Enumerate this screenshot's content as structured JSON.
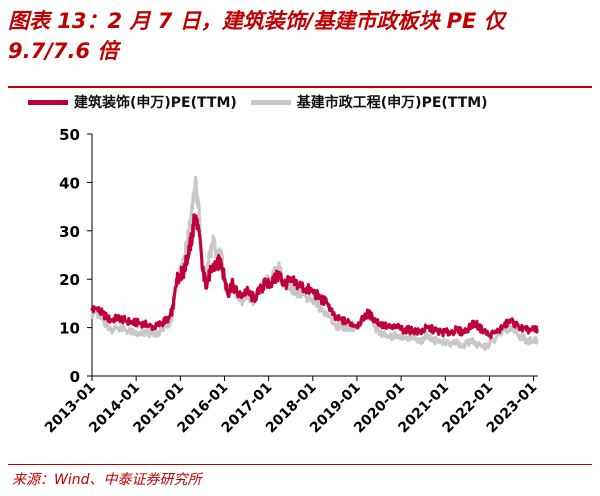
{
  "header": {
    "title": "图表 13：2 月 7 日，建筑装饰/基建市政板块 PE 仅 9.7/7.6 倍"
  },
  "footer": {
    "source": "来源：Wind、中泰证券研究所"
  },
  "chart_data": {
    "type": "line",
    "title": "",
    "xlabel": "",
    "ylabel": "",
    "ylim": [
      0,
      50
    ],
    "yticks": [
      0,
      10,
      20,
      30,
      40,
      50
    ],
    "xticks": [
      "2013-01",
      "2014-01",
      "2015-01",
      "2016-01",
      "2017-01",
      "2018-01",
      "2019-01",
      "2020-01",
      "2021-01",
      "2022-01",
      "2023-01"
    ],
    "grid": false,
    "legend_position": "top",
    "series": [
      {
        "name": "建筑装饰(申万)PE(TTM)",
        "color": "#c0003c",
        "points": [
          [
            "2013-01",
            13.5
          ],
          [
            "2013-02",
            14.0
          ],
          [
            "2013-04",
            12.8
          ],
          [
            "2013-06",
            11.5
          ],
          [
            "2013-08",
            12.0
          ],
          [
            "2013-10",
            11.5
          ],
          [
            "2013-12",
            11.0
          ],
          [
            "2014-02",
            11.0
          ],
          [
            "2014-04",
            10.5
          ],
          [
            "2014-06",
            10.0
          ],
          [
            "2014-08",
            11.0
          ],
          [
            "2014-10",
            12.0
          ],
          [
            "2014-11",
            14.0
          ],
          [
            "2014-12",
            20.0
          ],
          [
            "2015-01",
            21.0
          ],
          [
            "2015-02",
            21.5
          ],
          [
            "2015-03",
            25.0
          ],
          [
            "2015-04",
            28.0
          ],
          [
            "2015-05",
            33.0
          ],
          [
            "2015-06",
            30.0
          ],
          [
            "2015-07",
            22.0
          ],
          [
            "2015-08",
            19.0
          ],
          [
            "2015-09",
            21.0
          ],
          [
            "2015-10",
            22.5
          ],
          [
            "2015-11",
            23.0
          ],
          [
            "2015-12",
            24.0
          ],
          [
            "2016-01",
            20.0
          ],
          [
            "2016-02",
            17.0
          ],
          [
            "2016-03",
            19.0
          ],
          [
            "2016-05",
            16.5
          ],
          [
            "2016-07",
            17.5
          ],
          [
            "2016-09",
            16.0
          ],
          [
            "2016-11",
            18.0
          ],
          [
            "2016-12",
            19.0
          ],
          [
            "2017-02",
            19.5
          ],
          [
            "2017-04",
            21.0
          ],
          [
            "2017-05",
            19.0
          ],
          [
            "2017-07",
            19.5
          ],
          [
            "2017-09",
            19.0
          ],
          [
            "2017-11",
            18.0
          ],
          [
            "2018-01",
            17.5
          ],
          [
            "2018-03",
            16.0
          ],
          [
            "2018-05",
            15.0
          ],
          [
            "2018-07",
            12.0
          ],
          [
            "2018-09",
            11.5
          ],
          [
            "2018-11",
            11.0
          ],
          [
            "2019-01",
            10.5
          ],
          [
            "2019-03",
            12.0
          ],
          [
            "2019-04",
            13.0
          ],
          [
            "2019-06",
            11.5
          ],
          [
            "2019-08",
            10.5
          ],
          [
            "2019-10",
            10.0
          ],
          [
            "2019-12",
            10.0
          ],
          [
            "2020-02",
            9.5
          ],
          [
            "2020-04",
            9.5
          ],
          [
            "2020-06",
            9.0
          ],
          [
            "2020-08",
            10.0
          ],
          [
            "2020-10",
            9.5
          ],
          [
            "2020-12",
            9.0
          ],
          [
            "2021-02",
            9.0
          ],
          [
            "2021-04",
            9.5
          ],
          [
            "2021-06",
            9.0
          ],
          [
            "2021-08",
            10.5
          ],
          [
            "2021-09",
            11.0
          ],
          [
            "2021-11",
            9.5
          ],
          [
            "2022-01",
            8.5
          ],
          [
            "2022-03",
            9.0
          ],
          [
            "2022-05",
            10.5
          ],
          [
            "2022-07",
            11.5
          ],
          [
            "2022-09",
            10.0
          ],
          [
            "2022-11",
            9.5
          ],
          [
            "2023-01",
            9.5
          ],
          [
            "2023-02",
            9.7
          ]
        ]
      },
      {
        "name": "基建市政工程(申万)PE(TTM)",
        "color": "#c8c8c8",
        "points": [
          [
            "2013-01",
            12.8
          ],
          [
            "2013-02",
            13.0
          ],
          [
            "2013-04",
            11.5
          ],
          [
            "2013-06",
            9.5
          ],
          [
            "2013-08",
            10.0
          ],
          [
            "2013-10",
            9.5
          ],
          [
            "2013-12",
            9.0
          ],
          [
            "2014-02",
            8.5
          ],
          [
            "2014-04",
            9.0
          ],
          [
            "2014-06",
            8.5
          ],
          [
            "2014-08",
            9.5
          ],
          [
            "2014-10",
            10.5
          ],
          [
            "2014-11",
            13.0
          ],
          [
            "2014-12",
            20.0
          ],
          [
            "2015-01",
            22.0
          ],
          [
            "2015-02",
            24.0
          ],
          [
            "2015-03",
            28.0
          ],
          [
            "2015-04",
            33.0
          ],
          [
            "2015-05",
            39.5
          ],
          [
            "2015-06",
            35.0
          ],
          [
            "2015-07",
            23.0
          ],
          [
            "2015-08",
            20.0
          ],
          [
            "2015-09",
            25.0
          ],
          [
            "2015-10",
            27.5
          ],
          [
            "2015-11",
            25.0
          ],
          [
            "2015-12",
            26.0
          ],
          [
            "2016-01",
            20.0
          ],
          [
            "2016-02",
            17.0
          ],
          [
            "2016-03",
            19.5
          ],
          [
            "2016-05",
            15.5
          ],
          [
            "2016-07",
            16.0
          ],
          [
            "2016-09",
            15.5
          ],
          [
            "2016-11",
            18.0
          ],
          [
            "2016-12",
            19.0
          ],
          [
            "2017-02",
            20.5
          ],
          [
            "2017-04",
            22.5
          ],
          [
            "2017-05",
            18.5
          ],
          [
            "2017-07",
            18.0
          ],
          [
            "2017-09",
            17.5
          ],
          [
            "2017-11",
            16.5
          ],
          [
            "2018-01",
            16.0
          ],
          [
            "2018-03",
            14.0
          ],
          [
            "2018-05",
            13.0
          ],
          [
            "2018-07",
            10.5
          ],
          [
            "2018-09",
            10.0
          ],
          [
            "2018-11",
            10.0
          ],
          [
            "2019-01",
            10.0
          ],
          [
            "2019-03",
            12.0
          ],
          [
            "2019-04",
            12.5
          ],
          [
            "2019-06",
            10.0
          ],
          [
            "2019-08",
            8.5
          ],
          [
            "2019-10",
            8.0
          ],
          [
            "2019-12",
            8.5
          ],
          [
            "2020-02",
            8.0
          ],
          [
            "2020-04",
            8.0
          ],
          [
            "2020-06",
            7.0
          ],
          [
            "2020-08",
            8.5
          ],
          [
            "2020-10",
            7.5
          ],
          [
            "2020-12",
            7.0
          ],
          [
            "2021-02",
            6.5
          ],
          [
            "2021-04",
            7.0
          ],
          [
            "2021-06",
            6.0
          ],
          [
            "2021-08",
            7.5
          ],
          [
            "2021-09",
            6.5
          ],
          [
            "2021-11",
            6.0
          ],
          [
            "2022-01",
            6.5
          ],
          [
            "2022-03",
            8.0
          ],
          [
            "2022-05",
            9.5
          ],
          [
            "2022-07",
            10.0
          ],
          [
            "2022-09",
            8.5
          ],
          [
            "2022-11",
            7.5
          ],
          [
            "2023-01",
            7.0
          ],
          [
            "2023-02",
            7.6
          ]
        ]
      }
    ]
  }
}
